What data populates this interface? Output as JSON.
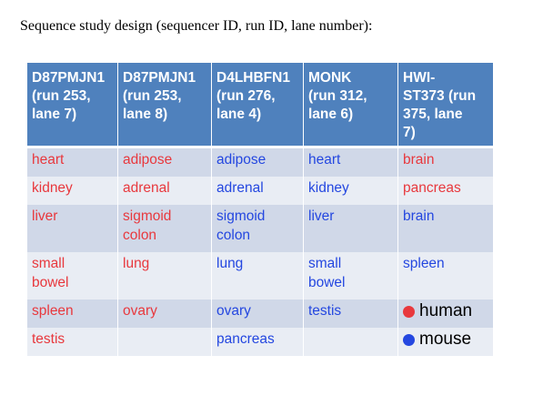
{
  "title": "Sequence study design (sequencer ID, run ID, lane number):",
  "colors": {
    "human": "#e8383d",
    "mouse": "#2447e0",
    "header_bg": "#4f81bd"
  },
  "table": {
    "headers": [
      "D87PMJN1\n(run 253,\nlane 7)",
      "D87PMJN1\n(run 253,\nlane 8)",
      "D4LHBFN1\n(run 276,\nlane 4)",
      "MONK\n(run 312,\nlane 6)",
      "HWI-\nST373 (run\n375, lane\n7)"
    ],
    "rows": [
      [
        {
          "text": "heart",
          "species": "human"
        },
        {
          "text": "adipose",
          "species": "human"
        },
        {
          "text": "adipose",
          "species": "mouse"
        },
        {
          "text": "heart",
          "species": "mouse"
        },
        {
          "text": "brain",
          "species": "human"
        }
      ],
      [
        {
          "text": "kidney",
          "species": "human"
        },
        {
          "text": "adrenal",
          "species": "human"
        },
        {
          "text": "adrenal",
          "species": "mouse"
        },
        {
          "text": "kidney",
          "species": "mouse"
        },
        {
          "text": "pancreas",
          "species": "human"
        }
      ],
      [
        {
          "text": "liver",
          "species": "human"
        },
        {
          "text": "sigmoid\ncolon",
          "species": "human"
        },
        {
          "text": "sigmoid\ncolon",
          "species": "mouse"
        },
        {
          "text": "liver",
          "species": "mouse"
        },
        {
          "text": "brain",
          "species": "mouse"
        }
      ],
      [
        {
          "text": "small\nbowel",
          "species": "human"
        },
        {
          "text": "lung",
          "species": "human"
        },
        {
          "text": "lung",
          "species": "mouse"
        },
        {
          "text": "small\nbowel",
          "species": "mouse"
        },
        {
          "text": "spleen",
          "species": "mouse"
        }
      ],
      [
        {
          "text": "spleen",
          "species": "human"
        },
        {
          "text": "ovary",
          "species": "human"
        },
        {
          "text": "ovary",
          "species": "mouse"
        },
        {
          "text": "testis",
          "species": "mouse"
        },
        {
          "legend": "human"
        }
      ],
      [
        {
          "text": "testis",
          "species": "human"
        },
        {
          "text": "",
          "species": "human"
        },
        {
          "text": "pancreas",
          "species": "mouse"
        },
        {
          "text": "",
          "species": "mouse"
        },
        {
          "legend": "mouse"
        }
      ]
    ]
  },
  "legend": {
    "human": "human",
    "mouse": "mouse"
  }
}
